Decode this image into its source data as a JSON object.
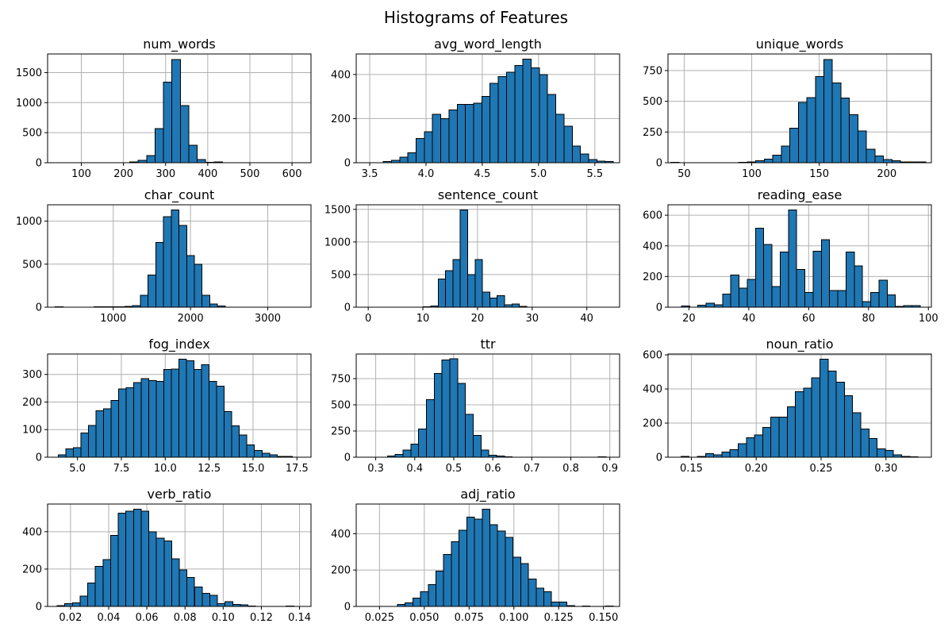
{
  "suptitle": "Histograms of Features",
  "style": {
    "bar_fill": "#1f77b4",
    "bar_edge": "#000000",
    "grid_color": "#b0b0b0",
    "spine_color": "#000000",
    "text_color": "#000000",
    "background": "#ffffff"
  },
  "chart_data": [
    {
      "type": "histogram",
      "title": "num_words",
      "bin_start": 215,
      "bin_width": 20,
      "counts": [
        10,
        40,
        120,
        570,
        1340,
        1720,
        950,
        290,
        55,
        8,
        15,
        0,
        0,
        0,
        0,
        0,
        0,
        0,
        0,
        2
      ],
      "xlim": [
        20,
        645
      ],
      "ylim": [
        0,
        1810
      ],
      "xticks": [
        100,
        200,
        300,
        400,
        500,
        600
      ],
      "xtick_labels": [
        "100",
        "200",
        "300",
        "400",
        "500",
        "600"
      ],
      "yticks": [
        0,
        500,
        1000,
        1500
      ],
      "ytick_labels": [
        "0",
        "500",
        "1000",
        "1500"
      ],
      "grid": true
    },
    {
      "type": "histogram",
      "title": "avg_word_length",
      "bin_start": 3.62,
      "bin_width": 0.073,
      "counts": [
        5,
        10,
        25,
        45,
        110,
        140,
        220,
        200,
        240,
        265,
        265,
        270,
        300,
        360,
        390,
        410,
        440,
        470,
        430,
        400,
        310,
        220,
        165,
        75,
        40,
        15,
        8,
        5
      ],
      "xlim": [
        3.38,
        5.72
      ],
      "ylim": [
        0,
        493
      ],
      "xticks": [
        3.5,
        4.0,
        4.5,
        5.0,
        5.5
      ],
      "xtick_labels": [
        "3.5",
        "4.0",
        "4.5",
        "5.0",
        "5.5"
      ],
      "yticks": [
        0,
        200,
        400
      ],
      "ytick_labels": [
        "0",
        "200",
        "400"
      ],
      "grid": true
    },
    {
      "type": "histogram",
      "title": "unique_words",
      "bin_start": 40,
      "bin_width": 6.3,
      "counts": [
        2,
        0,
        0,
        0,
        0,
        0,
        0,
        0,
        2,
        5,
        15,
        30,
        60,
        135,
        280,
        490,
        530,
        700,
        840,
        650,
        525,
        390,
        260,
        110,
        55,
        25,
        15,
        8,
        5,
        8
      ],
      "xlim": [
        38,
        233
      ],
      "ylim": [
        0,
        885
      ],
      "xticks": [
        50,
        100,
        150,
        200
      ],
      "xtick_labels": [
        "50",
        "100",
        "150",
        "200"
      ],
      "yticks": [
        0,
        250,
        500,
        750
      ],
      "ytick_labels": [
        "0",
        "250",
        "500",
        "750"
      ],
      "grid": true
    },
    {
      "type": "histogram",
      "title": "char_count",
      "bin_start": 250,
      "bin_width": 100,
      "counts": [
        3,
        2,
        2,
        2,
        2,
        3,
        3,
        3,
        5,
        10,
        20,
        140,
        375,
        750,
        1050,
        1130,
        950,
        600,
        500,
        140,
        35,
        15,
        0,
        0,
        0,
        0,
        0,
        0,
        0,
        0,
        0,
        2
      ],
      "xlim": [
        150,
        3560
      ],
      "ylim": [
        0,
        1190
      ],
      "xticks": [
        1000,
        2000,
        3000
      ],
      "xtick_labels": [
        "1000",
        "2000",
        "3000"
      ],
      "yticks": [
        0,
        500,
        1000
      ],
      "ytick_labels": [
        "0",
        "500",
        "1000"
      ],
      "grid": true
    },
    {
      "type": "histogram",
      "title": "sentence_count",
      "bin_start": 2.0,
      "bin_width": 1.35,
      "counts": [
        2,
        2,
        2,
        2,
        2,
        3,
        5,
        20,
        430,
        560,
        730,
        1490,
        500,
        730,
        230,
        140,
        175,
        35,
        50,
        15,
        3,
        2,
        2,
        2,
        0,
        2,
        0,
        0,
        2,
        0,
        0,
        2
      ],
      "xlim": [
        -2.2,
        46
      ],
      "ylim": [
        0,
        1570
      ],
      "xticks": [
        0,
        10,
        20,
        30,
        40
      ],
      "xtick_labels": [
        "0",
        "10",
        "20",
        "30",
        "40"
      ],
      "yticks": [
        0,
        500,
        1000,
        1500
      ],
      "ytick_labels": [
        "0",
        "500",
        "1000",
        "1500"
      ],
      "grid": true
    },
    {
      "type": "histogram",
      "title": "reading_ease",
      "bin_start": 17.5,
      "bin_width": 2.75,
      "counts": [
        8,
        0,
        12,
        25,
        15,
        85,
        210,
        125,
        180,
        515,
        410,
        135,
        360,
        635,
        245,
        95,
        365,
        440,
        110,
        110,
        360,
        270,
        35,
        95,
        175,
        80,
        5,
        10,
        10
      ],
      "xlim": [
        13,
        101
      ],
      "ylim": [
        0,
        668
      ],
      "xticks": [
        20,
        40,
        60,
        80,
        100
      ],
      "xtick_labels": [
        "20",
        "40",
        "60",
        "80",
        "100"
      ],
      "yticks": [
        0,
        200,
        400,
        600
      ],
      "ytick_labels": [
        "0",
        "200",
        "400",
        "600"
      ],
      "grid": true
    },
    {
      "type": "histogram",
      "title": "fog_index",
      "bin_start": 3.9,
      "bin_width": 0.43,
      "counts": [
        8,
        30,
        35,
        88,
        115,
        168,
        175,
        205,
        248,
        252,
        270,
        285,
        278,
        275,
        318,
        320,
        355,
        350,
        318,
        335,
        275,
        258,
        165,
        113,
        80,
        45,
        25,
        15,
        8,
        3,
        3
      ],
      "xlim": [
        3.3,
        18.3
      ],
      "ylim": [
        0,
        374
      ],
      "xticks": [
        5.0,
        7.5,
        10.0,
        12.5,
        15.0,
        17.5
      ],
      "xtick_labels": [
        "5.0",
        "7.5",
        "10.0",
        "12.5",
        "15.0",
        "17.5"
      ],
      "yticks": [
        0,
        100,
        200,
        300
      ],
      "ytick_labels": [
        "0",
        "100",
        "200",
        "300"
      ],
      "grid": true
    },
    {
      "type": "histogram",
      "title": "ttr",
      "bin_start": 0.33,
      "bin_width": 0.02,
      "counts": [
        10,
        25,
        70,
        125,
        270,
        550,
        800,
        930,
        940,
        705,
        410,
        210,
        70,
        20,
        10,
        5,
        0,
        0,
        0,
        0,
        0,
        0,
        0,
        0,
        0,
        0,
        0,
        2
      ],
      "xlim": [
        0.25,
        0.925
      ],
      "ylim": [
        0,
        985
      ],
      "xticks": [
        0.3,
        0.4,
        0.5,
        0.6,
        0.7,
        0.8,
        0.9
      ],
      "xtick_labels": [
        "0.3",
        "0.4",
        "0.5",
        "0.6",
        "0.7",
        "0.8",
        "0.9"
      ],
      "yticks": [
        0,
        250,
        500,
        750
      ],
      "ytick_labels": [
        "0",
        "250",
        "500",
        "750"
      ],
      "grid": true
    },
    {
      "type": "histogram",
      "title": "noun_ratio",
      "bin_start": 0.142,
      "bin_width": 0.0063,
      "counts": [
        5,
        0,
        5,
        20,
        15,
        30,
        45,
        80,
        115,
        130,
        175,
        235,
        235,
        295,
        385,
        405,
        465,
        575,
        505,
        440,
        360,
        260,
        165,
        110,
        50,
        40,
        15,
        5,
        3
      ],
      "xlim": [
        0.132,
        0.335
      ],
      "ylim": [
        0,
        605
      ],
      "xticks": [
        0.15,
        0.2,
        0.25,
        0.3
      ],
      "xtick_labels": [
        "0.15",
        "0.20",
        "0.25",
        "0.30"
      ],
      "yticks": [
        0,
        200,
        400,
        600
      ],
      "ytick_labels": [
        "0",
        "200",
        "400",
        "600"
      ],
      "grid": true
    },
    {
      "type": "histogram",
      "title": "verb_ratio",
      "bin_start": 0.013,
      "bin_width": 0.004,
      "counts": [
        5,
        15,
        20,
        55,
        125,
        215,
        250,
        380,
        500,
        510,
        520,
        510,
        400,
        365,
        350,
        255,
        195,
        155,
        105,
        70,
        60,
        15,
        25,
        10,
        8,
        3,
        0,
        0,
        0,
        0,
        2
      ],
      "xlim": [
        0.008,
        0.146
      ],
      "ylim": [
        0,
        548
      ],
      "xticks": [
        0.02,
        0.04,
        0.06,
        0.08,
        0.1,
        0.12,
        0.14
      ],
      "xtick_labels": [
        "0.02",
        "0.04",
        "0.06",
        "0.08",
        "0.10",
        "0.12",
        "0.14"
      ],
      "yticks": [
        0,
        200,
        400
      ],
      "ytick_labels": [
        "0",
        "200",
        "400"
      ],
      "grid": true
    },
    {
      "type": "histogram",
      "title": "adj_ratio",
      "bin_start": 0.035,
      "bin_width": 0.0043,
      "counts": [
        10,
        20,
        45,
        80,
        120,
        195,
        285,
        355,
        420,
        490,
        480,
        535,
        450,
        415,
        380,
        270,
        235,
        150,
        100,
        80,
        25,
        25,
        5,
        0,
        2,
        0,
        0,
        2
      ],
      "xlim": [
        0.012,
        0.159
      ],
      "ylim": [
        0,
        563
      ],
      "xticks": [
        0.025,
        0.05,
        0.075,
        0.1,
        0.125,
        0.15
      ],
      "xtick_labels": [
        "0.025",
        "0.050",
        "0.075",
        "0.100",
        "0.125",
        "0.150"
      ],
      "yticks": [
        0,
        200,
        400
      ],
      "ytick_labels": [
        "0",
        "200",
        "400"
      ],
      "grid": true
    }
  ]
}
